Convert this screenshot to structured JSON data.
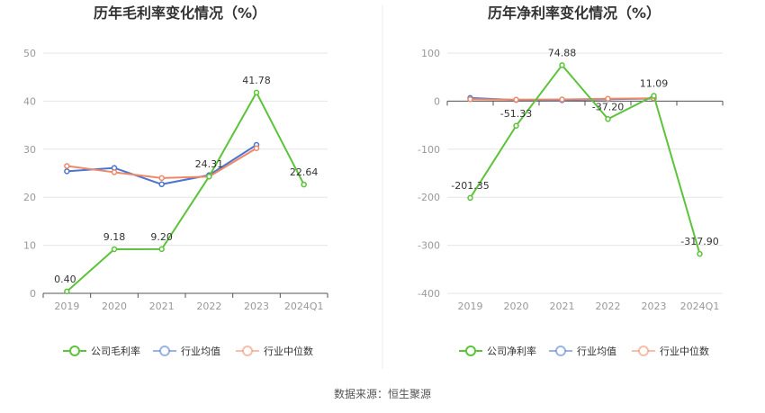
{
  "source": "数据来源：恒生聚源",
  "chart_data": [
    {
      "type": "line",
      "title": "历年毛利率变化情况（%）",
      "categories": [
        "2019",
        "2020",
        "2021",
        "2022",
        "2023",
        "2024Q1"
      ],
      "ylim": [
        0,
        50
      ],
      "yticks": [
        0,
        10,
        20,
        30,
        40,
        50
      ],
      "grid": true,
      "legend_position": "bottom",
      "series": [
        {
          "name": "公司毛利率",
          "color": "#5cc33b",
          "values": [
            0.4,
            9.18,
            9.2,
            24.31,
            41.78,
            22.64
          ],
          "labels": [
            "0.40",
            "9.18",
            "9.20",
            "24.31",
            "41.78",
            "22.64"
          ]
        },
        {
          "name": "行业均值",
          "color": "#4a75d1",
          "values": [
            25.4,
            26.1,
            22.7,
            24.6,
            30.9,
            null
          ]
        },
        {
          "name": "行业中位数",
          "color": "#ee8866",
          "values": [
            26.5,
            25.2,
            24.0,
            24.3,
            30.2,
            null
          ]
        }
      ]
    },
    {
      "type": "line",
      "title": "历年净利率变化情况（%）",
      "categories": [
        "2019",
        "2020",
        "2021",
        "2022",
        "2023",
        "2024Q1"
      ],
      "ylim": [
        -400,
        100
      ],
      "yticks": [
        -400,
        -300,
        -200,
        -100,
        0,
        100
      ],
      "grid": true,
      "legend_position": "bottom",
      "series": [
        {
          "name": "公司净利率",
          "color": "#5cc33b",
          "values": [
            -201.35,
            -51.33,
            74.88,
            -37.2,
            11.09,
            -317.9
          ],
          "labels": [
            "-201.35",
            "-51.33",
            "74.88",
            "-37.20",
            "11.09",
            "-317.90"
          ]
        },
        {
          "name": "行业均值",
          "color": "#4a75d1",
          "values": [
            6.5,
            2.5,
            2.0,
            4.0,
            5.5,
            null
          ]
        },
        {
          "name": "行业中位数",
          "color": "#ee8866",
          "values": [
            4.0,
            3.0,
            3.5,
            5.0,
            6.0,
            null
          ]
        }
      ]
    }
  ]
}
